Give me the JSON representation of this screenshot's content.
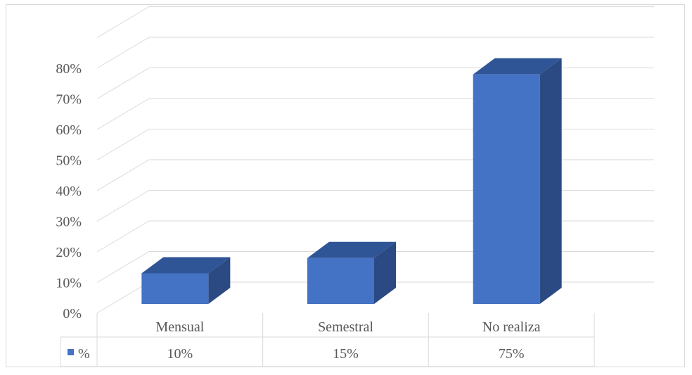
{
  "chart_data": {
    "type": "bar",
    "style": "3d-column-with-data-table",
    "categories": [
      "Mensual",
      "Semestral",
      "No realiza"
    ],
    "series": [
      {
        "name": "%",
        "values": [
          0.1,
          0.15,
          0.75
        ],
        "color": "#4472c4"
      }
    ],
    "value_labels": [
      "10%",
      "15%",
      "75%"
    ],
    "y_ticks": [
      "0%",
      "10%",
      "20%",
      "30%",
      "40%",
      "50%",
      "60%",
      "70%",
      "80%"
    ],
    "ylim": [
      0,
      0.9
    ],
    "grid": true,
    "legend_in_table": "%",
    "colors": {
      "front": "#4472c4",
      "top": "#2f5597",
      "side": "#2b4a84",
      "grid": "#d9d9d9",
      "text": "#595959"
    }
  }
}
